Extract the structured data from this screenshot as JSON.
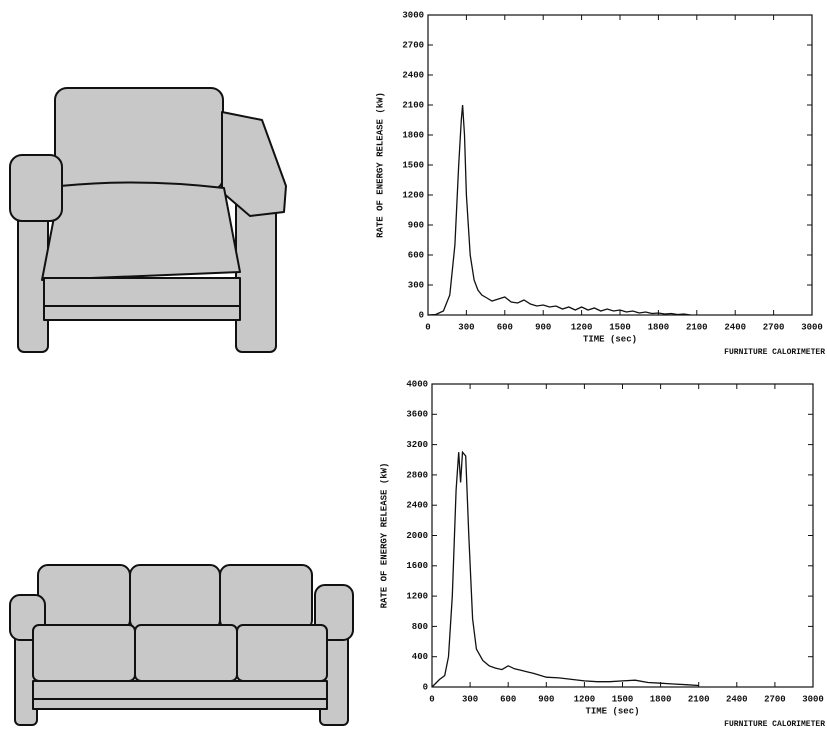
{
  "chart_data": [
    {
      "type": "line",
      "xlabel": "TIME (sec)",
      "ylabel": "RATE OF ENERGY RELEASE (kW)",
      "note": "FURNITURE CALORIMETER",
      "x": [
        0,
        60,
        120,
        170,
        210,
        240,
        260,
        270,
        285,
        300,
        330,
        360,
        390,
        420,
        460,
        500,
        550,
        600,
        650,
        700,
        750,
        800,
        850,
        900,
        950,
        1000,
        1050,
        1100,
        1150,
        1200,
        1250,
        1300,
        1350,
        1400,
        1450,
        1500,
        1550,
        1600,
        1650,
        1700,
        1750,
        1800,
        1850,
        1900,
        1950,
        2000,
        2050
      ],
      "values": [
        0,
        5,
        40,
        200,
        700,
        1500,
        1950,
        2100,
        1800,
        1200,
        600,
        350,
        250,
        200,
        170,
        140,
        160,
        180,
        130,
        120,
        150,
        110,
        90,
        100,
        80,
        90,
        60,
        80,
        50,
        80,
        50,
        70,
        40,
        60,
        40,
        50,
        30,
        40,
        20,
        30,
        15,
        20,
        10,
        15,
        5,
        10,
        0
      ],
      "color": "#111111",
      "xlim": [
        0,
        3000
      ],
      "ylim": [
        0,
        3000
      ],
      "xticks": [
        0,
        300,
        600,
        900,
        1200,
        1500,
        1800,
        2100,
        2400,
        2700,
        3000
      ],
      "yticks": [
        0,
        300,
        600,
        900,
        1200,
        1500,
        1800,
        2100,
        2400,
        2700,
        3000
      ]
    },
    {
      "type": "line",
      "xlabel": "TIME (sec)",
      "ylabel": "RATE OF ENERGY RELEASE (kW)",
      "note": "FURNITURE CALORIMETER",
      "x": [
        0,
        60,
        100,
        130,
        160,
        190,
        210,
        225,
        240,
        265,
        290,
        320,
        350,
        400,
        450,
        500,
        550,
        600,
        650,
        700,
        750,
        800,
        900,
        1000,
        1100,
        1200,
        1300,
        1400,
        1500,
        1600,
        1700,
        1800,
        1900,
        2000,
        2100
      ],
      "values": [
        0,
        100,
        150,
        400,
        1200,
        2600,
        3100,
        2700,
        3100,
        3050,
        2000,
        900,
        500,
        350,
        280,
        250,
        230,
        280,
        240,
        220,
        200,
        180,
        130,
        120,
        100,
        80,
        70,
        70,
        80,
        90,
        60,
        50,
        40,
        30,
        20
      ],
      "color": "#111111",
      "xlim": [
        0,
        3000
      ],
      "ylim": [
        0,
        4000
      ],
      "xticks": [
        0,
        300,
        600,
        900,
        1200,
        1500,
        1800,
        2100,
        2400,
        2700,
        3000
      ],
      "yticks": [
        0,
        400,
        800,
        1200,
        1600,
        2000,
        2400,
        2800,
        3200,
        3600,
        4000
      ]
    }
  ]
}
